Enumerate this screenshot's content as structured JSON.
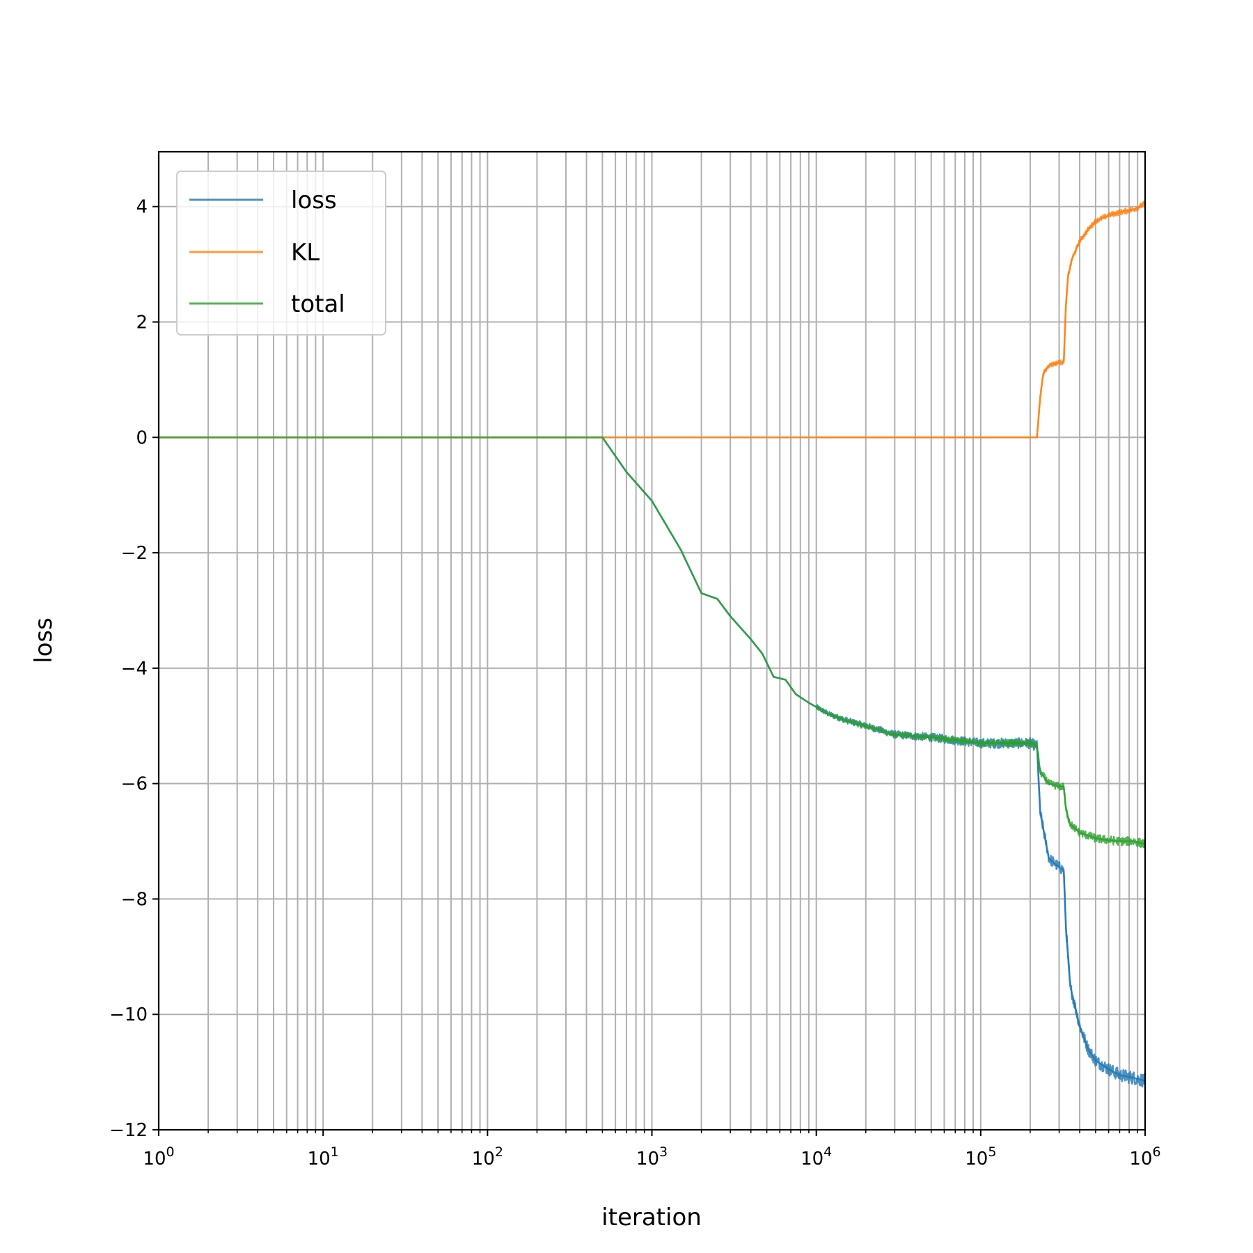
{
  "chart_data": {
    "type": "line",
    "title": "",
    "xlabel": "iteration",
    "ylabel": "loss",
    "xscale": "log",
    "xlim": [
      1,
      1000000
    ],
    "ylim": [
      -12,
      4.95
    ],
    "xticks": [
      1,
      10,
      100,
      1000,
      10000,
      100000,
      1000000
    ],
    "xtick_labels": [
      {
        "base": "10",
        "exp": "0"
      },
      {
        "base": "10",
        "exp": "1"
      },
      {
        "base": "10",
        "exp": "2"
      },
      {
        "base": "10",
        "exp": "3"
      },
      {
        "base": "10",
        "exp": "4"
      },
      {
        "base": "10",
        "exp": "5"
      },
      {
        "base": "10",
        "exp": "6"
      }
    ],
    "yticks": [
      4,
      2,
      0,
      -2,
      -4,
      -6,
      -8,
      -10,
      -12
    ],
    "ytick_labels": [
      "4",
      "2",
      "0",
      "−2",
      "−4",
      "−6",
      "−8",
      "−10",
      "−12"
    ],
    "grid": true,
    "minor_grid": true,
    "legend_position": "top-left",
    "series": [
      {
        "name": "loss",
        "color": "#1f77b4",
        "noise": 0.12,
        "x": [
          1,
          500,
          700,
          1000,
          1500,
          2000,
          2500,
          3000,
          4000,
          4700,
          5500,
          6500,
          7500,
          9000,
          12000,
          15000,
          20000,
          30000,
          50000,
          100000,
          200000,
          220000,
          230000,
          260000,
          300000,
          320000,
          330000,
          350000,
          400000,
          450000,
          500000,
          600000,
          700000,
          850000,
          1000000
        ],
        "y": [
          0,
          0,
          -0.6,
          -1.1,
          -1.95,
          -2.7,
          -2.8,
          -3.1,
          -3.5,
          -3.75,
          -4.15,
          -4.2,
          -4.45,
          -4.6,
          -4.8,
          -4.9,
          -5.0,
          -5.15,
          -5.2,
          -5.3,
          -5.3,
          -5.35,
          -6.5,
          -7.3,
          -7.45,
          -7.5,
          -8.5,
          -9.5,
          -10.2,
          -10.6,
          -10.8,
          -10.95,
          -11.05,
          -11.1,
          -11.15
        ]
      },
      {
        "name": "KL",
        "color": "#ff7f0e",
        "noise": 0.05,
        "x": [
          1,
          100000,
          220000,
          230000,
          240000,
          260000,
          300000,
          320000,
          330000,
          340000,
          360000,
          400000,
          450000,
          500000,
          600000,
          700000,
          850000,
          1000000
        ],
        "y": [
          0,
          0,
          0,
          0.7,
          1.1,
          1.25,
          1.3,
          1.3,
          2.3,
          2.8,
          3.1,
          3.4,
          3.6,
          3.75,
          3.85,
          3.9,
          3.95,
          4.05
        ]
      },
      {
        "name": "total",
        "color": "#2ca02c",
        "noise": 0.08,
        "x": [
          1,
          500,
          700,
          1000,
          1500,
          2000,
          2500,
          3000,
          4000,
          4700,
          5500,
          6500,
          7500,
          9000,
          12000,
          15000,
          20000,
          30000,
          50000,
          100000,
          200000,
          220000,
          230000,
          260000,
          300000,
          320000,
          330000,
          350000,
          400000,
          450000,
          500000,
          600000,
          700000,
          850000,
          1000000
        ],
        "y": [
          0,
          0,
          -0.6,
          -1.1,
          -1.95,
          -2.7,
          -2.8,
          -3.1,
          -3.5,
          -3.75,
          -4.15,
          -4.2,
          -4.45,
          -4.6,
          -4.8,
          -4.9,
          -5.0,
          -5.15,
          -5.2,
          -5.3,
          -5.3,
          -5.35,
          -5.8,
          -6.0,
          -6.05,
          -6.05,
          -6.45,
          -6.7,
          -6.85,
          -6.9,
          -6.95,
          -6.98,
          -7.0,
          -7.0,
          -7.05
        ]
      }
    ]
  }
}
